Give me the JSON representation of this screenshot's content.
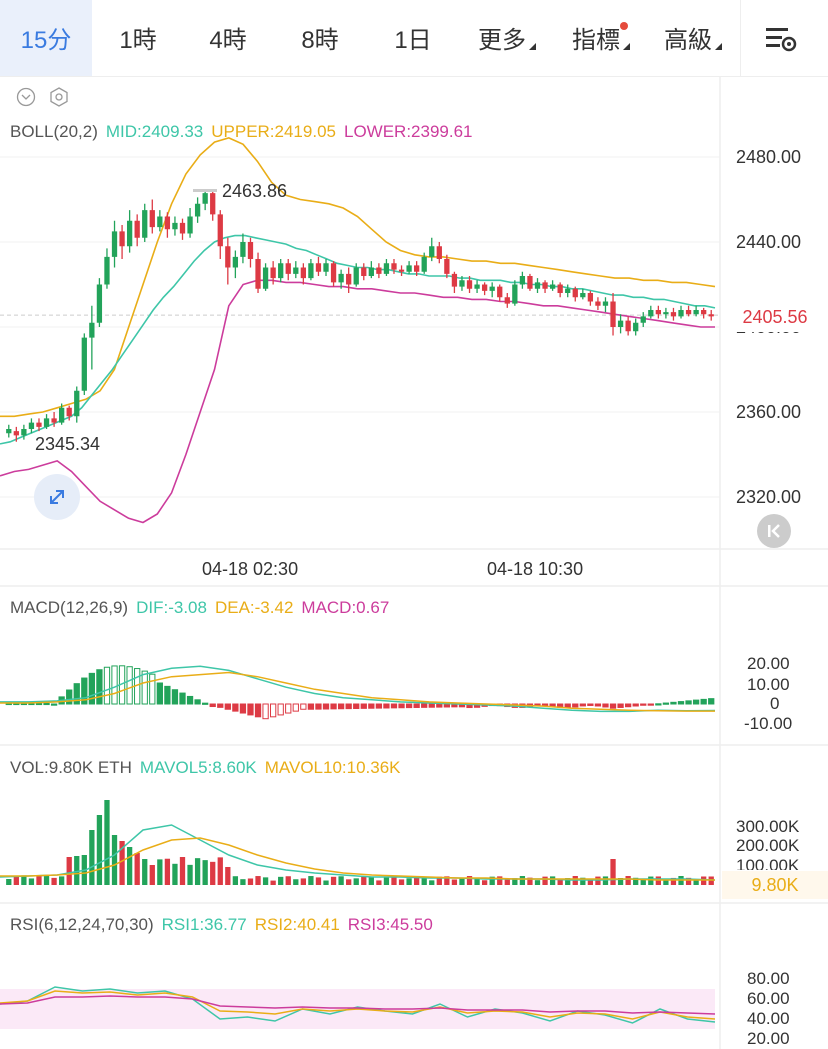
{
  "toolbar": {
    "tabs": [
      {
        "label": "15分",
        "active": true
      },
      {
        "label": "1時"
      },
      {
        "label": "4時"
      },
      {
        "label": "8時"
      },
      {
        "label": "1日"
      },
      {
        "label": "更多"
      },
      {
        "label": "指標"
      },
      {
        "label": "高級"
      }
    ],
    "settings_icon": "chart-settings-icon"
  },
  "colors": {
    "up": "#22a35a",
    "down": "#dd3a44",
    "mid": "#3ec6a8",
    "upper": "#e9ad17",
    "lower": "#cc3c9c",
    "accent": "#3a7be0"
  },
  "main": {
    "indicator": "BOLL(20,2)",
    "mid": "MID:2409.33",
    "upper": "UPPER:2419.05",
    "lower": "LOWER:2399.61",
    "high_label": "2463.86",
    "low_label": "2345.34",
    "price_badge": "2405.56",
    "y_ticks": [
      "2480.00",
      "2440.00",
      "2400.00",
      "2360.00",
      "2320.00"
    ],
    "x_ticks": [
      "04-18 02:30",
      "04-18 10:30"
    ]
  },
  "macd": {
    "indicator": "MACD(12,26,9)",
    "dif": "DIF:-3.08",
    "dea": "DEA:-3.42",
    "macd": "MACD:0.67",
    "y_ticks": [
      "20.00",
      "10.00",
      "0",
      "-10.00"
    ]
  },
  "vol": {
    "indicator": "VOL:9.80K ETH",
    "mavol5": "MAVOL5:8.60K",
    "mavol10": "MAVOL10:10.36K",
    "y_ticks": [
      "300.00K",
      "200.00K",
      "100.00K"
    ],
    "badge": "9.80K"
  },
  "rsi": {
    "indicator": "RSI(6,12,24,70,30)",
    "rsi1": "RSI1:36.77",
    "rsi2": "RSI2:40.41",
    "rsi3": "RSI3:45.50",
    "y_ticks": [
      "80.00",
      "60.00",
      "40.00",
      "20.00"
    ]
  },
  "chart_data": {
    "type": "candlestick",
    "y_range": [
      2300,
      2490
    ],
    "candles": [
      [
        2350,
        2352,
        2354,
        2348
      ],
      [
        2351,
        2349,
        2353,
        2346
      ],
      [
        2349,
        2352,
        2354,
        2347
      ],
      [
        2352,
        2355,
        2357,
        2350
      ],
      [
        2355,
        2353,
        2357,
        2351
      ],
      [
        2353,
        2357,
        2359,
        2352
      ],
      [
        2357,
        2355,
        2360,
        2353
      ],
      [
        2355,
        2362,
        2364,
        2354
      ],
      [
        2362,
        2358,
        2363,
        2356
      ],
      [
        2358,
        2370,
        2372,
        2355
      ],
      [
        2370,
        2395,
        2397,
        2368
      ],
      [
        2395,
        2402,
        2410,
        2380
      ],
      [
        2402,
        2420,
        2423,
        2400
      ],
      [
        2420,
        2433,
        2437,
        2418
      ],
      [
        2433,
        2445,
        2450,
        2428
      ],
      [
        2445,
        2438,
        2448,
        2432
      ],
      [
        2438,
        2450,
        2455,
        2435
      ],
      [
        2450,
        2442,
        2453,
        2438
      ],
      [
        2442,
        2455,
        2458,
        2440
      ],
      [
        2455,
        2447,
        2460,
        2444
      ],
      [
        2447,
        2452,
        2455,
        2445
      ],
      [
        2452,
        2446,
        2454,
        2442
      ],
      [
        2446,
        2449,
        2452,
        2443
      ],
      [
        2449,
        2444,
        2451,
        2441
      ],
      [
        2444,
        2452,
        2456,
        2442
      ],
      [
        2452,
        2458,
        2461,
        2449
      ],
      [
        2458,
        2463,
        2464,
        2455
      ],
      [
        2463,
        2453,
        2464,
        2450
      ],
      [
        2453,
        2438,
        2455,
        2432
      ],
      [
        2438,
        2428,
        2442,
        2420
      ],
      [
        2428,
        2433,
        2436,
        2423
      ],
      [
        2433,
        2440,
        2444,
        2430
      ],
      [
        2440,
        2432,
        2442,
        2428
      ],
      [
        2432,
        2418,
        2435,
        2416
      ],
      [
        2418,
        2428,
        2430,
        2417
      ],
      [
        2428,
        2423,
        2431,
        2420
      ],
      [
        2423,
        2430,
        2432,
        2421
      ],
      [
        2430,
        2425,
        2432,
        2422
      ],
      [
        2425,
        2428,
        2431,
        2423
      ],
      [
        2428,
        2423,
        2430,
        2420
      ],
      [
        2423,
        2430,
        2432,
        2422
      ],
      [
        2430,
        2426,
        2433,
        2424
      ],
      [
        2426,
        2430,
        2432,
        2424
      ],
      [
        2430,
        2421,
        2431,
        2419
      ],
      [
        2421,
        2425,
        2427,
        2418
      ],
      [
        2425,
        2420,
        2428,
        2416
      ],
      [
        2420,
        2428,
        2430,
        2419
      ],
      [
        2428,
        2424,
        2430,
        2422
      ],
      [
        2424,
        2428,
        2431,
        2423
      ],
      [
        2428,
        2425,
        2430,
        2423
      ],
      [
        2425,
        2430,
        2432,
        2424
      ],
      [
        2430,
        2427,
        2432,
        2425
      ],
      [
        2427,
        2426,
        2429,
        2424
      ],
      [
        2426,
        2429,
        2431,
        2425
      ],
      [
        2429,
        2426,
        2431,
        2424
      ],
      [
        2426,
        2433,
        2435,
        2425
      ],
      [
        2433,
        2438,
        2442,
        2431
      ],
      [
        2438,
        2432,
        2440,
        2430
      ],
      [
        2432,
        2425,
        2434,
        2423
      ],
      [
        2425,
        2419,
        2426,
        2416
      ],
      [
        2419,
        2422,
        2424,
        2417
      ],
      [
        2422,
        2418,
        2424,
        2416
      ],
      [
        2418,
        2420,
        2422,
        2416
      ],
      [
        2420,
        2417,
        2421,
        2415
      ],
      [
        2417,
        2419,
        2421,
        2414
      ],
      [
        2419,
        2414,
        2420,
        2412
      ],
      [
        2414,
        2411,
        2416,
        2409
      ],
      [
        2411,
        2420,
        2422,
        2410
      ],
      [
        2420,
        2424,
        2426,
        2418
      ],
      [
        2424,
        2418,
        2425,
        2417
      ],
      [
        2418,
        2421,
        2423,
        2416
      ],
      [
        2421,
        2418,
        2422,
        2416
      ],
      [
        2418,
        2420,
        2422,
        2417
      ],
      [
        2420,
        2416,
        2421,
        2414
      ],
      [
        2416,
        2418,
        2420,
        2414
      ],
      [
        2418,
        2414,
        2419,
        2412
      ],
      [
        2414,
        2416,
        2418,
        2413
      ],
      [
        2416,
        2412,
        2417,
        2410
      ],
      [
        2412,
        2410,
        2414,
        2408
      ],
      [
        2410,
        2412,
        2414,
        2407
      ],
      [
        2412,
        2400,
        2416,
        2396
      ],
      [
        2400,
        2403,
        2406,
        2397
      ],
      [
        2403,
        2398,
        2405,
        2396
      ],
      [
        2398,
        2402,
        2404,
        2396
      ],
      [
        2402,
        2405,
        2407,
        2400
      ],
      [
        2405,
        2408,
        2410,
        2404
      ],
      [
        2408,
        2406,
        2410,
        2404
      ],
      [
        2406,
        2407,
        2409,
        2404
      ],
      [
        2407,
        2405,
        2409,
        2403
      ],
      [
        2405,
        2408,
        2410,
        2404
      ],
      [
        2408,
        2406,
        2410,
        2405
      ],
      [
        2406,
        2408,
        2410,
        2405
      ],
      [
        2408,
        2406,
        2409,
        2404
      ],
      [
        2406,
        2405,
        2408,
        2403
      ]
    ],
    "mid": [
      2345,
      2346,
      2348,
      2350,
      2352,
      2354,
      2356,
      2358,
      2362,
      2368,
      2374,
      2380,
      2387,
      2394,
      2401,
      2408,
      2414,
      2419,
      2425,
      2431,
      2436,
      2440,
      2442,
      2443,
      2443,
      2442,
      2441,
      2440,
      2439,
      2437,
      2436,
      2434,
      2432,
      2430,
      2429,
      2428,
      2428,
      2427,
      2427,
      2426,
      2425,
      2425,
      2424,
      2424,
      2424,
      2423,
      2423,
      2422,
      2422,
      2422,
      2421,
      2421,
      2420,
      2420,
      2419,
      2419,
      2418,
      2418,
      2417,
      2416,
      2415,
      2415,
      2414,
      2414,
      2413,
      2413,
      2412,
      2411,
      2410,
      2410,
      2409
    ],
    "upper": [
      2358,
      2358,
      2359,
      2360,
      2362,
      2364,
      2366,
      2370,
      2380,
      2400,
      2420,
      2440,
      2458,
      2472,
      2481,
      2487,
      2489,
      2486,
      2478,
      2468,
      2462,
      2460,
      2459,
      2458,
      2456,
      2452,
      2446,
      2440,
      2436,
      2434,
      2433,
      2433,
      2432,
      2431,
      2431,
      2430,
      2430,
      2429,
      2428,
      2427,
      2426,
      2425,
      2424,
      2423,
      2423,
      2422,
      2422,
      2421,
      2421,
      2420,
      2419
    ],
    "lower": [
      2330,
      2332,
      2333,
      2335,
      2337,
      2332,
      2325,
      2318,
      2314,
      2310,
      2308,
      2312,
      2322,
      2340,
      2360,
      2380,
      2410,
      2420,
      2422,
      2422,
      2421,
      2421,
      2420,
      2419,
      2419,
      2418,
      2418,
      2417,
      2416,
      2416,
      2415,
      2414,
      2414,
      2413,
      2413,
      2412,
      2412,
      2411,
      2410,
      2410,
      2409,
      2408,
      2407,
      2406,
      2405,
      2404,
      2403,
      2402,
      2401,
      2400,
      2400
    ],
    "current": 2405.56
  }
}
